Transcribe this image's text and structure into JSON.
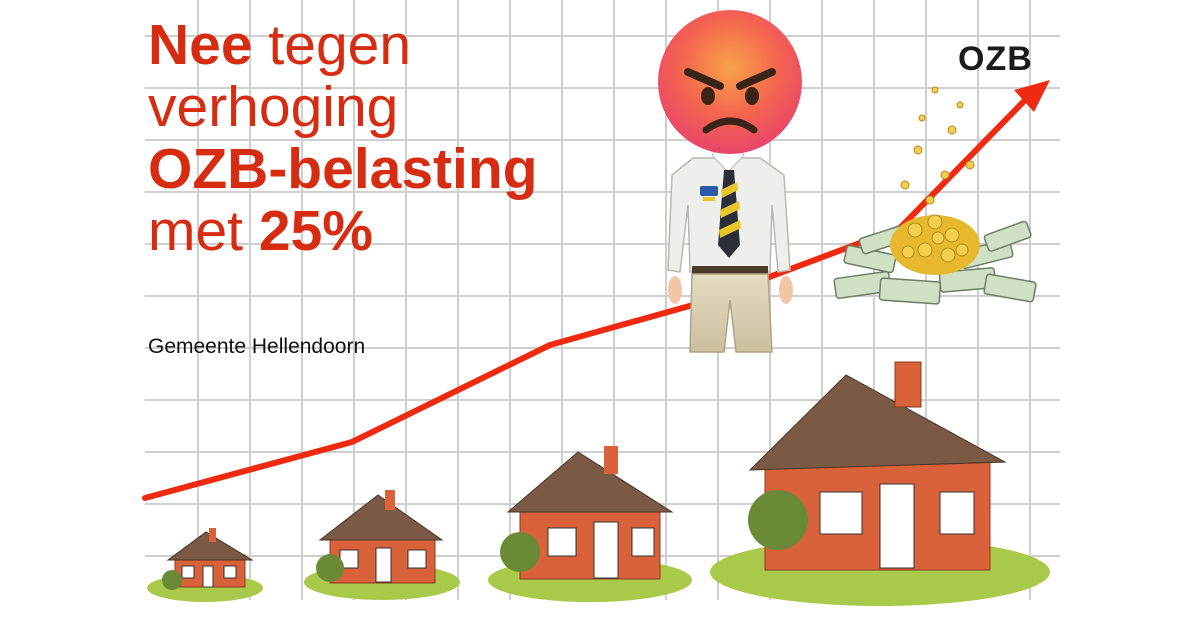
{
  "headline": {
    "line1_bold": "Nee",
    "line1_rest": "tegen",
    "line2": "verhoging",
    "line3": "OZB-belasting",
    "line4_rest": "met",
    "line4_bold": "25%"
  },
  "subtitle": "Gemeente Hellendoorn",
  "arrow_label": "OZB",
  "colors": {
    "accent_red": "#d62c12",
    "arrow_red": "#ef2a10",
    "grid": "#cfcfcf",
    "brick": "#d9623a",
    "roof": "#7a5a45",
    "grass": "#a9c94a",
    "emoji_face": "#f46a4e"
  },
  "icons": [
    "angry-face-icon",
    "money-pile-icon",
    "house-icon",
    "tree-icon"
  ]
}
